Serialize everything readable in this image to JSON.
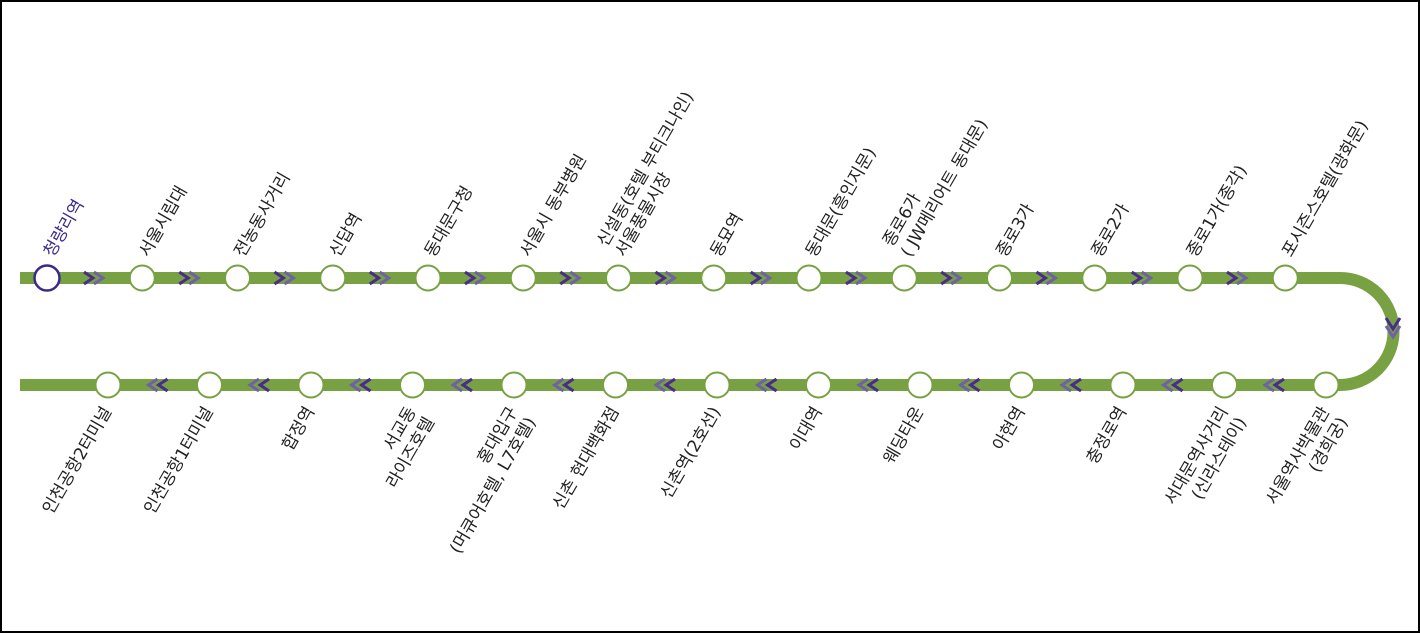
{
  "route": {
    "top_stops": [
      {
        "lines": [
          "청량리역"
        ],
        "current": true
      },
      {
        "lines": [
          "서울시립대"
        ]
      },
      {
        "lines": [
          "전농동사거리"
        ]
      },
      {
        "lines": [
          "신답역"
        ]
      },
      {
        "lines": [
          "동대문구청"
        ]
      },
      {
        "lines": [
          "서울시 동부병원"
        ]
      },
      {
        "lines": [
          "신설동(호텔 부티크나인)",
          "서울풍물시장"
        ]
      },
      {
        "lines": [
          "동묘역"
        ]
      },
      {
        "lines": [
          "동대문(흥인지문)"
        ]
      },
      {
        "lines": [
          "종로6가",
          "( JW메리어트 동대문)"
        ]
      },
      {
        "lines": [
          "종로3가"
        ]
      },
      {
        "lines": [
          "종로2가"
        ]
      },
      {
        "lines": [
          "종로1가(종각)"
        ]
      },
      {
        "lines": [
          "포시즌스호텔(광화문)"
        ]
      }
    ],
    "bottom_stops": [
      {
        "lines": [
          "서울역사박물관",
          "(경희궁)"
        ]
      },
      {
        "lines": [
          "서대문역사거리",
          "(신라스테이)"
        ]
      },
      {
        "lines": [
          "충정로역"
        ]
      },
      {
        "lines": [
          "아현역"
        ]
      },
      {
        "lines": [
          "웨딩타운"
        ]
      },
      {
        "lines": [
          "이대역"
        ]
      },
      {
        "lines": [
          "신촌역(2호선)"
        ]
      },
      {
        "lines": [
          "신촌 현대백화점"
        ]
      },
      {
        "lines": [
          "홍대입구",
          "(머큐어호텔, L7호텔)"
        ]
      },
      {
        "lines": [
          "서교동",
          "라이즈호텔"
        ]
      },
      {
        "lines": [
          "합정역"
        ]
      },
      {
        "lines": [
          "인천공항1터미널"
        ]
      },
      {
        "lines": [
          "인천공항2터미널"
        ]
      }
    ]
  }
}
